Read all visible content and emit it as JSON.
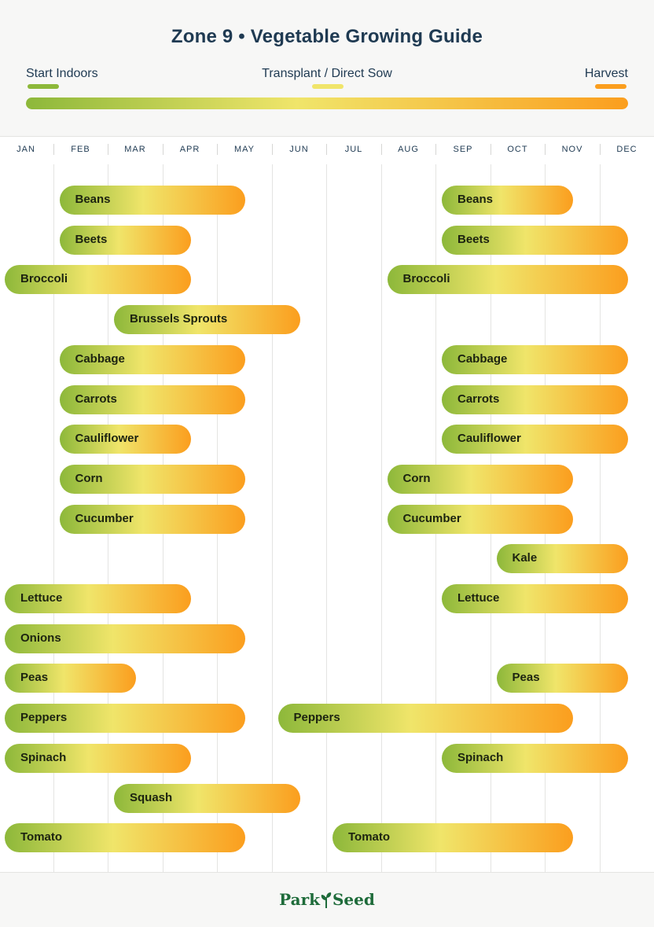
{
  "title": "Zone 9  •  Vegetable Growing Guide",
  "legend": {
    "start": {
      "label": "Start Indoors",
      "color": "#8db83a"
    },
    "transplant": {
      "label": "Transplant / Direct Sow",
      "color": "#f0e56a"
    },
    "harvest": {
      "label": "Harvest",
      "color": "#fb9e1e"
    }
  },
  "months": [
    "JAN",
    "FEB",
    "MAR",
    "APR",
    "MAY",
    "JUN",
    "JUL",
    "AUG",
    "SEP",
    "OCT",
    "NOV",
    "DEC"
  ],
  "logo": {
    "text_left": "Park",
    "text_right": "Seed",
    "icon": "sprout-icon"
  },
  "chart_data": {
    "type": "gantt",
    "title": "Zone 9  •  Vegetable Growing Guide",
    "x_axis": "month",
    "categories": [
      "Beans",
      "Beets",
      "Broccoli",
      "Brussels Sprouts",
      "Cabbage",
      "Carrots",
      "Cauliflower",
      "Corn",
      "Cucumber",
      "Kale",
      "Lettuce",
      "Onions",
      "Peas",
      "Peppers",
      "Spinach",
      "Squash",
      "Tomato"
    ],
    "series": [
      {
        "name": "Beans",
        "periods": [
          {
            "start": "Feb",
            "end": "May"
          },
          {
            "start": "Sep",
            "end": "Nov"
          }
        ]
      },
      {
        "name": "Beets",
        "periods": [
          {
            "start": "Feb",
            "end": "Apr"
          },
          {
            "start": "Sep",
            "end": "Dec"
          }
        ]
      },
      {
        "name": "Broccoli",
        "periods": [
          {
            "start": "Jan",
            "end": "Apr"
          },
          {
            "start": "Aug",
            "end": "Dec"
          }
        ]
      },
      {
        "name": "Brussels Sprouts",
        "periods": [
          {
            "start": "Mar",
            "end": "Jun"
          }
        ]
      },
      {
        "name": "Cabbage",
        "periods": [
          {
            "start": "Feb",
            "end": "May"
          },
          {
            "start": "Sep",
            "end": "Dec"
          }
        ]
      },
      {
        "name": "Carrots",
        "periods": [
          {
            "start": "Feb",
            "end": "May"
          },
          {
            "start": "Sep",
            "end": "Dec"
          }
        ]
      },
      {
        "name": "Cauliflower",
        "periods": [
          {
            "start": "Feb",
            "end": "Apr"
          },
          {
            "start": "Sep",
            "end": "Dec"
          }
        ]
      },
      {
        "name": "Corn",
        "periods": [
          {
            "start": "Feb",
            "end": "May"
          },
          {
            "start": "Aug",
            "end": "Nov"
          }
        ]
      },
      {
        "name": "Cucumber",
        "periods": [
          {
            "start": "Feb",
            "end": "May"
          },
          {
            "start": "Aug",
            "end": "Nov"
          }
        ]
      },
      {
        "name": "Kale",
        "periods": [
          {
            "start": "Oct",
            "end": "Dec"
          }
        ]
      },
      {
        "name": "Lettuce",
        "periods": [
          {
            "start": "Jan",
            "end": "Apr"
          },
          {
            "start": "Sep",
            "end": "Dec"
          }
        ]
      },
      {
        "name": "Onions",
        "periods": [
          {
            "start": "Jan",
            "end": "May"
          }
        ]
      },
      {
        "name": "Peas",
        "periods": [
          {
            "start": "Jan",
            "end": "Mar"
          },
          {
            "start": "Oct",
            "end": "Dec"
          }
        ]
      },
      {
        "name": "Peppers",
        "periods": [
          {
            "start": "Jan",
            "end": "May"
          },
          {
            "start": "Jun",
            "end": "Nov"
          }
        ]
      },
      {
        "name": "Spinach",
        "periods": [
          {
            "start": "Jan",
            "end": "Apr"
          },
          {
            "start": "Sep",
            "end": "Dec"
          }
        ]
      },
      {
        "name": "Squash",
        "periods": [
          {
            "start": "Mar",
            "end": "Jun"
          }
        ]
      },
      {
        "name": "Tomato",
        "periods": [
          {
            "start": "Jan",
            "end": "May"
          },
          {
            "start": "Jul",
            "end": "Nov"
          }
        ]
      }
    ]
  }
}
